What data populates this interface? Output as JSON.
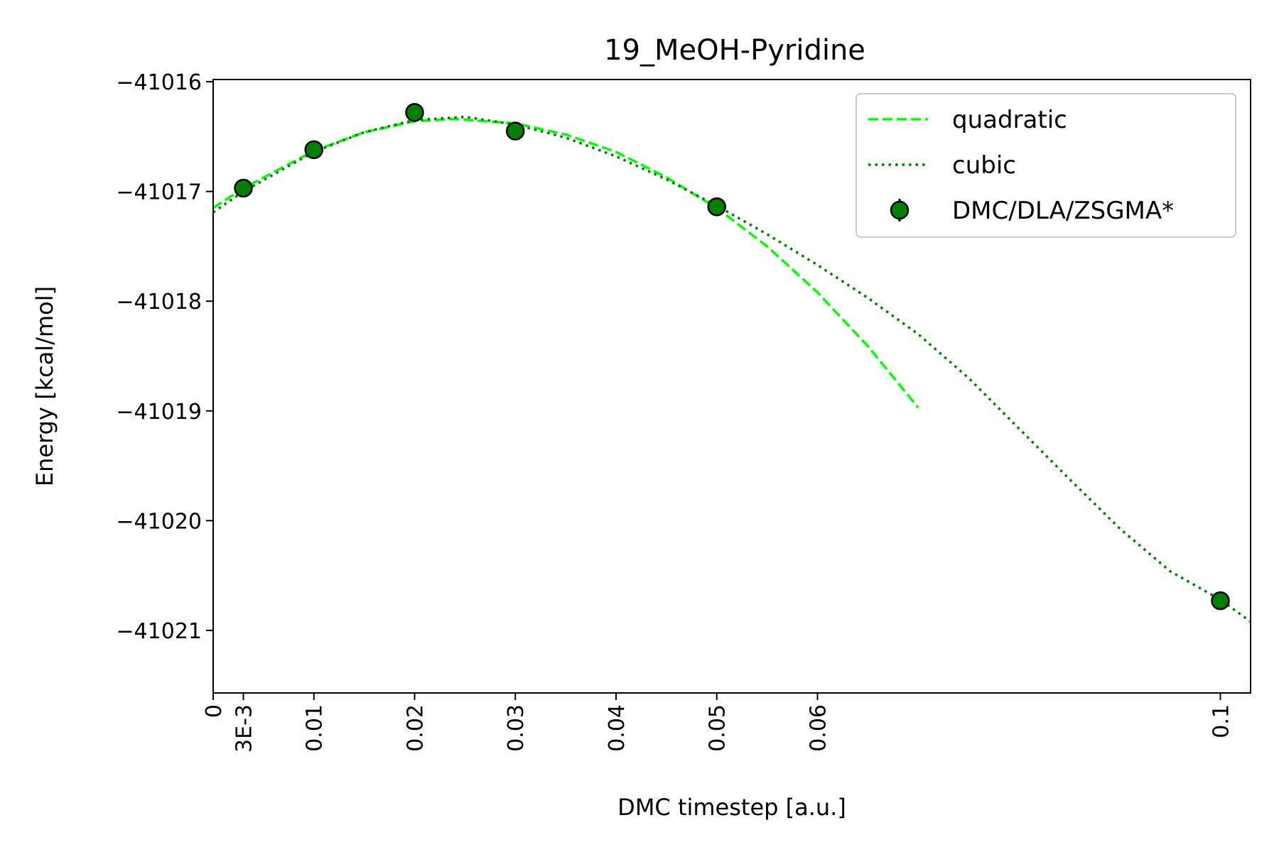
{
  "chart_data": {
    "type": "line",
    "title": "19_MeOH-Pyridine",
    "xlabel": "DMC timestep [a.u.]",
    "ylabel": "Energy [kcal/mol]",
    "xlim": [
      0,
      0.103
    ],
    "ylim": [
      -41021.57,
      -41015.98
    ],
    "grid": false,
    "legend_position": "top-right",
    "x_ticks": [
      {
        "value": 0,
        "label": "0"
      },
      {
        "value": 0.003,
        "label": "3E-3"
      },
      {
        "value": 0.01,
        "label": "0.01"
      },
      {
        "value": 0.02,
        "label": "0.02"
      },
      {
        "value": 0.03,
        "label": "0.03"
      },
      {
        "value": 0.04,
        "label": "0.04"
      },
      {
        "value": 0.05,
        "label": "0.05"
      },
      {
        "value": 0.06,
        "label": "0.06"
      },
      {
        "value": 0.1,
        "label": "0.1"
      }
    ],
    "y_ticks": [
      {
        "value": -41016,
        "label": "−41016"
      },
      {
        "value": -41017,
        "label": "−41017"
      },
      {
        "value": -41018,
        "label": "−41018"
      },
      {
        "value": -41019,
        "label": "−41019"
      },
      {
        "value": -41020,
        "label": "−41020"
      },
      {
        "value": -41021,
        "label": "−41021"
      }
    ],
    "series": [
      {
        "name": "quadratic",
        "style": "dashed",
        "color": "#00ff00",
        "x": [
          0,
          0.003,
          0.01,
          0.015,
          0.02,
          0.024,
          0.03,
          0.035,
          0.04,
          0.045,
          0.05,
          0.055,
          0.06,
          0.065,
          0.07
        ],
        "y": [
          -41017.15,
          -41016.97,
          -41016.63,
          -41016.46,
          -41016.36,
          -41016.34,
          -41016.38,
          -41016.48,
          -41016.64,
          -41016.87,
          -41017.15,
          -41017.5,
          -41017.92,
          -41018.41,
          -41018.97
        ]
      },
      {
        "name": "cubic",
        "style": "dotted",
        "color": "#008000",
        "x": [
          0,
          0.003,
          0.01,
          0.015,
          0.02,
          0.025,
          0.03,
          0.035,
          0.04,
          0.045,
          0.05,
          0.055,
          0.06,
          0.065,
          0.07,
          0.075,
          0.08,
          0.085,
          0.09,
          0.095,
          0.1,
          0.103
        ],
        "y": [
          -41017.19,
          -41017.0,
          -41016.64,
          -41016.46,
          -41016.35,
          -41016.32,
          -41016.39,
          -41016.51,
          -41016.68,
          -41016.89,
          -41017.13,
          -41017.39,
          -41017.67,
          -41017.97,
          -41018.3,
          -41018.7,
          -41019.16,
          -41019.62,
          -41020.07,
          -41020.46,
          -41020.72,
          -41020.92
        ]
      },
      {
        "name": "DMC/DLA/ZSGMA*",
        "style": "markers",
        "color": "#008000",
        "x": [
          0.003,
          0.01,
          0.02,
          0.03,
          0.05,
          0.1
        ],
        "y": [
          -41016.97,
          -41016.62,
          -41016.28,
          -41016.45,
          -41017.14,
          -41020.73
        ]
      }
    ]
  }
}
